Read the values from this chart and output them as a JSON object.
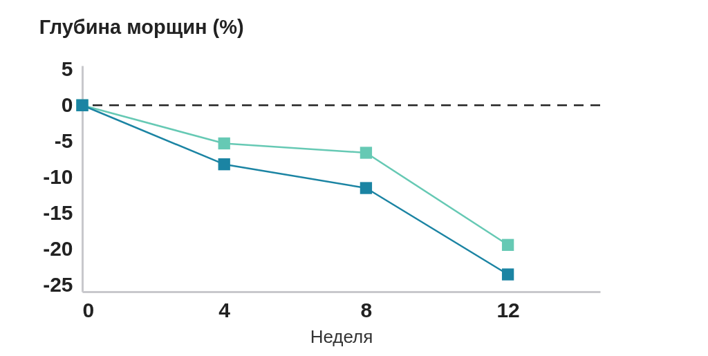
{
  "chart_data": {
    "type": "line",
    "title": "Глубина морщин (%)",
    "xlabel": "Неделя",
    "x": [
      0,
      4,
      8,
      12
    ],
    "series": [
      {
        "color": "#66c9b4",
        "values": [
          0,
          -5.3,
          -6.6,
          -19.4
        ]
      },
      {
        "color": "#1b84a3",
        "values": [
          0,
          -8.2,
          -11.5,
          -23.5
        ]
      }
    ],
    "xlim": [
      0,
      14.6
    ],
    "xticks": [
      0,
      4,
      8,
      12
    ],
    "ylim": [
      -25.9,
      5.5
    ],
    "yticks": [
      5,
      0,
      -5,
      -10,
      -15,
      -20,
      -25
    ],
    "ref_lines": [
      {
        "axis": "y",
        "value": 0,
        "color": "#222222",
        "line_style": "dashed"
      }
    ],
    "marker": "square",
    "grid": false
  }
}
